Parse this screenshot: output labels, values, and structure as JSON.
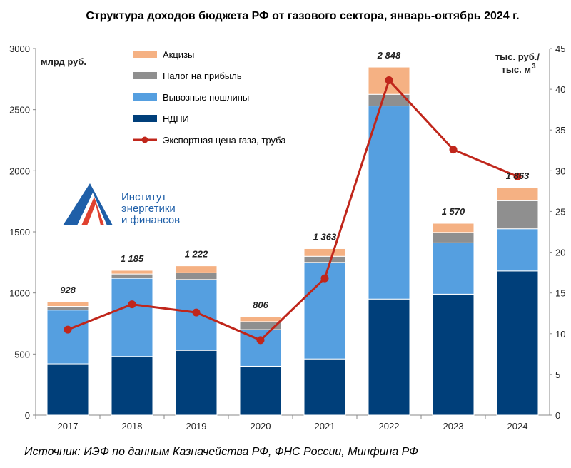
{
  "title": "Структура доходов бюджета РФ от газового сектора, январь-октябрь 2024 г.",
  "source": "Источник: ИЭФ по данным Казначейства РФ, ФНС России, Минфина РФ",
  "logo": {
    "line1": "Институт",
    "line2": "энергетики",
    "line3": "и финансов"
  },
  "chart_data": {
    "type": "bar",
    "stacked": true,
    "categories": [
      "2017",
      "2018",
      "2019",
      "2020",
      "2021",
      "2022",
      "2023",
      "2024"
    ],
    "left_axis": {
      "unit": "млрд руб.",
      "ylim": [
        0,
        3000
      ],
      "ticks": [
        "0",
        "500",
        "1000",
        "1500",
        "2000",
        "2500",
        "3000"
      ]
    },
    "right_axis": {
      "unit_line1": "тыс. руб./",
      "unit_line2": "тыс. м",
      "unit_sup": "3",
      "ylim": [
        0,
        45
      ],
      "ticks": [
        "0",
        "5",
        "10",
        "15",
        "20",
        "25",
        "30",
        "35",
        "40",
        "45"
      ]
    },
    "series": [
      {
        "name": "НДПИ",
        "color": "#003f7a",
        "values": [
          420,
          480,
          530,
          400,
          460,
          950,
          990,
          1180
        ]
      },
      {
        "name": "Вывозные пошлины",
        "color": "#559fe0",
        "values": [
          440,
          640,
          580,
          300,
          790,
          1580,
          420,
          345
        ]
      },
      {
        "name": "Налог на прибыль",
        "color": "#8f8f8f",
        "values": [
          30,
          35,
          55,
          65,
          50,
          95,
          85,
          230
        ]
      },
      {
        "name": "Акцизы",
        "color": "#f5b183",
        "values": [
          38,
          30,
          57,
          41,
          63,
          223,
          75,
          108
        ]
      }
    ],
    "line_series": {
      "name": "Экспортная цена газа, труба",
      "color": "#c0261b",
      "axis": "right",
      "values": [
        10.5,
        13.6,
        12.6,
        9.2,
        16.8,
        41.1,
        32.6,
        29.3
      ]
    },
    "totals": [
      "928",
      "1 185",
      "1 222",
      "806",
      "1 363",
      "2 848",
      "1 570",
      "1 863"
    ],
    "legend_order": [
      "Акцизы",
      "Налог на прибыль",
      "Вывозные пошлины",
      "НДПИ",
      "Экспортная цена газа, труба"
    ],
    "legend_position": "top-left",
    "grid": false
  }
}
